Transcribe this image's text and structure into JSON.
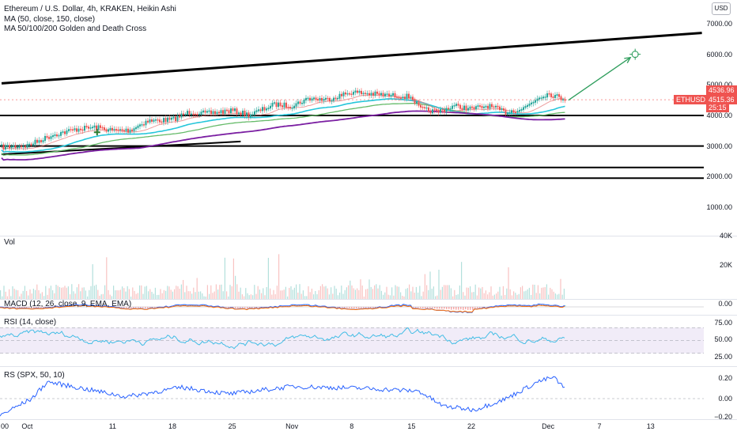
{
  "legend": {
    "main_title": "Ethereum / U.S. Dollar, 4h, KRAKEN, Heikin Ashi",
    "ma_line": "MA (50, close, 150, close)",
    "cross_line": "MA 50/100/200 Golden and Death Cross",
    "vol": "Vol",
    "macd": "MACD (12, 26, close, 9, EMA, EMA)",
    "rsi": "RSI (14, close)",
    "rs": "RS (SPX, 50, 10)"
  },
  "currency_button": "USD",
  "price_axis": [
    "7000.00",
    "6000.00",
    "5000.00",
    "4000.00",
    "3000.00",
    "2000.00",
    "1000.00"
  ],
  "price_badges": {
    "ticker": "ETHUSD",
    "price_high": "4536.96",
    "price_last": "4515.36",
    "countdown": "25:15"
  },
  "vol_axis": [
    "40K",
    "20K"
  ],
  "macd_axis": [
    "0.00"
  ],
  "rsi_axis": [
    "75.00",
    "50.00",
    "25.00"
  ],
  "rs_axis": [
    "0.20",
    "0.00",
    "−0.20"
  ],
  "time_axis": [
    "00",
    "Oct",
    "11",
    "18",
    "25",
    "Nov",
    "8",
    "15",
    "22",
    "Dec",
    "7",
    "13"
  ],
  "colors": {
    "up": "#26a69a",
    "down": "#ef5350",
    "ma_teal": "#26c6da",
    "ma_green": "#66bb6a",
    "ma_purple": "#7b1fa2",
    "ma_red": "#e57373",
    "rsi_line": "#42bde5",
    "rsi_band": "#ede7f6",
    "rs_line": "#2962ff",
    "projection": "#2e9d5c",
    "ticker_badge": "#ef5350"
  },
  "chart_data": {
    "type": "line",
    "symbol": "ETHUSD",
    "interval": "4h",
    "exchange": "KRAKEN",
    "candle_style": "Heikin Ashi",
    "y_range_price": [
      700,
      7400
    ],
    "last_price": 4515.36,
    "high_price": 4536.96,
    "price_path": [
      {
        "date": "Sep 28",
        "value": 2950
      },
      {
        "date": "Oct 1",
        "value": 3000
      },
      {
        "date": "Oct 4",
        "value": 3350
      },
      {
        "date": "Oct 7",
        "value": 3550
      },
      {
        "date": "Oct 9",
        "value": 3600
      },
      {
        "date": "Oct 11",
        "value": 3500
      },
      {
        "date": "Oct 13",
        "value": 3500
      },
      {
        "date": "Oct 15",
        "value": 3800
      },
      {
        "date": "Oct 18",
        "value": 3850
      },
      {
        "date": "Oct 20",
        "value": 4100
      },
      {
        "date": "Oct 22",
        "value": 4050
      },
      {
        "date": "Oct 25",
        "value": 4150
      },
      {
        "date": "Oct 27",
        "value": 4000
      },
      {
        "date": "Oct 30",
        "value": 4350
      },
      {
        "date": "Nov 1",
        "value": 4300
      },
      {
        "date": "Nov 3",
        "value": 4550
      },
      {
        "date": "Nov 5",
        "value": 4500
      },
      {
        "date": "Nov 8",
        "value": 4750
      },
      {
        "date": "Nov 10",
        "value": 4700
      },
      {
        "date": "Nov 12",
        "value": 4650
      },
      {
        "date": "Nov 15",
        "value": 4600
      },
      {
        "date": "Nov 16",
        "value": 4200
      },
      {
        "date": "Nov 18",
        "value": 4100
      },
      {
        "date": "Nov 20",
        "value": 4300
      },
      {
        "date": "Nov 22",
        "value": 4200
      },
      {
        "date": "Nov 24",
        "value": 4300
      },
      {
        "date": "Nov 26",
        "value": 4100
      },
      {
        "date": "Nov 28",
        "value": 4200
      },
      {
        "date": "Nov 30",
        "value": 4600
      },
      {
        "date": "Dec 1",
        "value": 4700
      },
      {
        "date": "Dec 3",
        "value": 4515
      }
    ],
    "rsi": {
      "levels": [
        75,
        50,
        25
      ],
      "range": [
        0,
        100
      ],
      "last": 55
    },
    "rs": {
      "levels": [
        0.2,
        0.0,
        -0.2
      ],
      "last": 0.1
    },
    "macd": {
      "zero": 0.0
    },
    "horizontal_lines": [
      4000,
      3000,
      2300,
      1950
    ],
    "trendline_upper": [
      {
        "date": "Sep 28",
        "value": 5050
      },
      {
        "date": "Dec 19",
        "value": 6700
      }
    ],
    "trendline_lower": [
      {
        "date": "Sep 28",
        "value": 2730
      },
      {
        "date": "Oct 26",
        "value": 3150
      }
    ],
    "projection_target": {
      "date": "Dec 11",
      "value": 6000
    },
    "grid": false,
    "legend_position": "top-left"
  }
}
